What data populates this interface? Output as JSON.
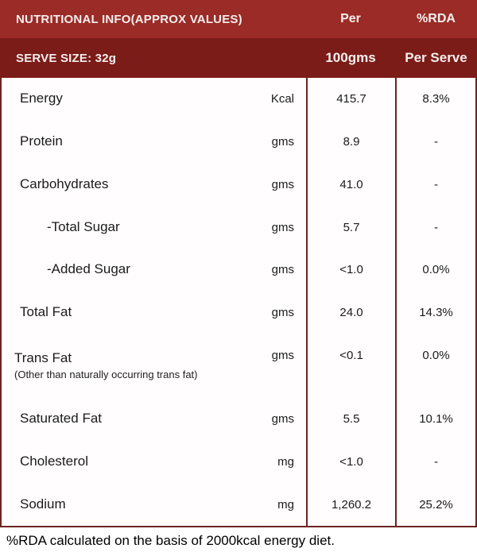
{
  "colors": {
    "band1": "#9a2b26",
    "band2": "#7b1c18",
    "border": "#6b2421",
    "header_text": "#f7efee",
    "body_text": "#1b1b1b"
  },
  "header": {
    "row1": {
      "title": "NUTRITIONAL INFO(APPROX VALUES)",
      "col1": "Per",
      "col2": "%RDA"
    },
    "row2": {
      "title": "SERVE SIZE: 32g",
      "col1": "100gms",
      "col2": "Per Serve"
    }
  },
  "rows": [
    {
      "name": "Energy",
      "unit": "Kcal",
      "per_100g": "415.7",
      "rda": "8.3%"
    },
    {
      "name": "Protein",
      "unit": "gms",
      "per_100g": "8.9",
      "rda": "-"
    },
    {
      "name": "Carbohydrates",
      "unit": "gms",
      "per_100g": "41.0",
      "rda": "-"
    },
    {
      "name": "-Total Sugar",
      "unit": "gms",
      "per_100g": "5.7",
      "rda": "-",
      "indent": true
    },
    {
      "name": "-Added Sugar",
      "unit": "gms",
      "per_100g": "<1.0",
      "rda": "0.0%",
      "indent": true
    },
    {
      "name": "Total Fat",
      "unit": "gms",
      "per_100g": "24.0",
      "rda": "14.3%"
    },
    {
      "name": "Trans Fat",
      "unit": "gms",
      "per_100g": "<0.1",
      "rda": "0.0%",
      "note": "(Other than naturally occurring trans fat)"
    },
    {
      "name": "Saturated Fat",
      "unit": "gms",
      "per_100g": "5.5",
      "rda": "10.1%"
    },
    {
      "name": "Cholesterol",
      "unit": "mg",
      "per_100g": "<1.0",
      "rda": "-"
    },
    {
      "name": "Sodium",
      "unit": "mg",
      "per_100g": "1,260.2",
      "rda": "25.2%"
    }
  ],
  "footer": {
    "note": "%RDA calculated on the basis of 2000kcal energy diet."
  }
}
